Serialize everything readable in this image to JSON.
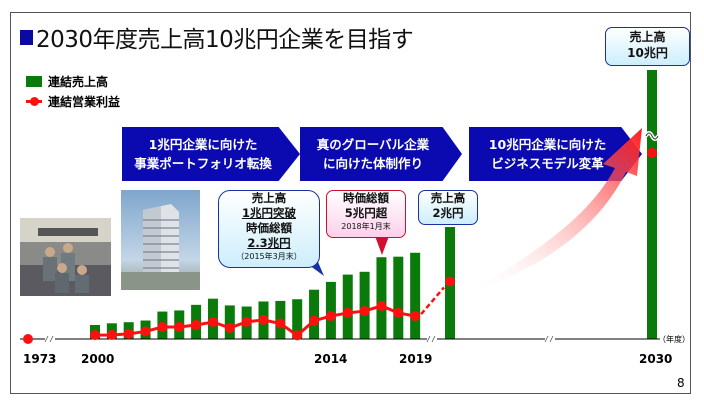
{
  "title": "2030年度売上高10兆円企業を目指す",
  "legend": [
    {
      "label": "連結売上高",
      "color": "#0a7a0a",
      "marker": "square"
    },
    {
      "label": "連結営業利益",
      "color": "#ff1010",
      "marker": "line-dot"
    }
  ],
  "phases": [
    "1兆円企業に向けた\n事業ポートフォリオ転換",
    "真のグローバル企業\nに向けた体制作り",
    "10兆円企業に向けた\nビジネスモデル変革"
  ],
  "callouts": {
    "milestone_1": {
      "line1": "売上高",
      "line2": "1兆円突破",
      "line3": "時価総額",
      "line4": "2.3兆円",
      "note": "（2015年3月末）"
    },
    "milestone_2": {
      "line1": "時価総額",
      "line2": "5兆円超",
      "note": "2018年1月末"
    },
    "target_2020": {
      "line1": "売上高",
      "line2": "2兆円"
    },
    "target_2030": {
      "line1": "売上高",
      "line2": "10兆円"
    }
  },
  "page_number": "8",
  "chart_data": {
    "type": "bar",
    "x_unit_label": "（年度）",
    "tick_labels": [
      "1973",
      "2000",
      "2014",
      "2019",
      "2030"
    ],
    "axis_breaks": [
      "1973-2000",
      "2019-2020",
      "2020-2030"
    ],
    "grid": false,
    "legend_placement": "top-left",
    "series": [
      {
        "name": "連結売上高",
        "unit": "兆円",
        "color": "#0a7a0a",
        "x": [
          2000,
          2001,
          2002,
          2003,
          2004,
          2005,
          2006,
          2007,
          2008,
          2009,
          2010,
          2011,
          2012,
          2013,
          2014,
          2015,
          2016,
          2017,
          2018,
          2019,
          2020,
          2030
        ],
        "values": [
          0.25,
          0.28,
          0.3,
          0.33,
          0.49,
          0.51,
          0.61,
          0.72,
          0.6,
          0.58,
          0.67,
          0.68,
          0.71,
          0.88,
          1.02,
          1.15,
          1.2,
          1.46,
          1.47,
          1.54,
          2.0,
          10.0
        ]
      },
      {
        "name": "連結営業利益",
        "unit": "億円",
        "color": "#ff1010",
        "x": [
          1973,
          2000,
          2001,
          2002,
          2003,
          2004,
          2005,
          2006,
          2007,
          2008,
          2009,
          2010,
          2011,
          2012,
          2013,
          2014,
          2015,
          2016,
          2017,
          2018,
          2019,
          2020
        ],
        "values": [
          0,
          100,
          110,
          170,
          300,
          540,
          540,
          650,
          810,
          490,
          820,
          920,
          730,
          90,
          880,
          1130,
          1300,
          1400,
          1680,
          1300,
          1130,
          3000
        ],
        "dashed_from": 2019
      }
    ]
  }
}
